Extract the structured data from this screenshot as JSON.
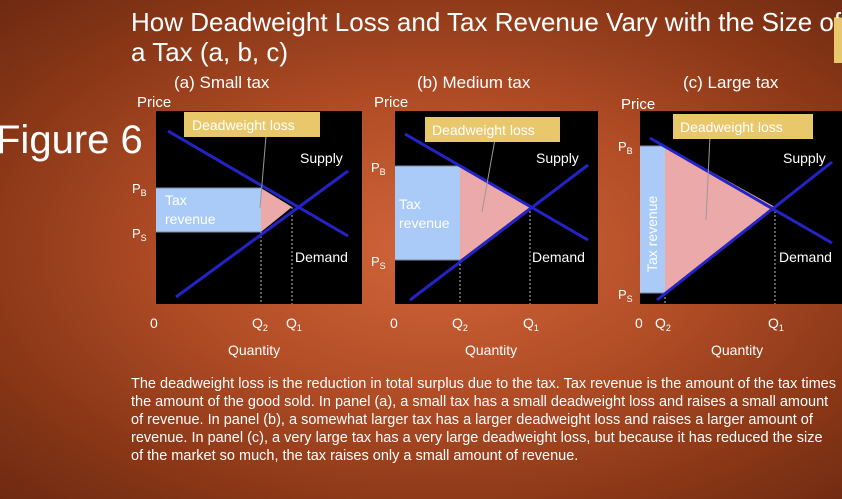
{
  "slide": {
    "title": "How Deadweight Loss and Tax Revenue Vary with the Size of a Tax (a, b, c)",
    "figure_label": "Figure 6",
    "caption": "The deadweight loss is the reduction in total surplus due to the tax. Tax revenue is the amount of the tax times the amount of the good sold. In panel (a), a small tax has a small deadweight loss and raises a small amount of revenue. In panel (b), a somewhat larger tax has a larger deadweight loss and raises a larger amount of revenue. In panel (c), a very large tax has a very large deadweight loss, but because it has reduced the size of the market so much, the tax raises only a small amount of revenue."
  },
  "colors": {
    "plot_bg": "#000000",
    "curve": "#2323c8",
    "tax_revenue": "#aacbf7",
    "deadweight_loss": "#eba9a9",
    "callout_bg": "#e8c86a"
  },
  "panels": [
    {
      "id": "a",
      "title": "(a) Small tax",
      "y_label": "Price",
      "x_label": "Quantity",
      "origin": "0",
      "supply": "Supply",
      "demand": "Demand",
      "pb": "P",
      "pb_sub": "B",
      "ps": "P",
      "ps_sub": "S",
      "q2": "Q",
      "q2_sub": "2",
      "q1": "Q",
      "q1_sub": "1",
      "revenue": "Tax revenue",
      "dwl": "Deadweight loss"
    },
    {
      "id": "b",
      "title": "(b) Medium tax",
      "y_label": "Price",
      "x_label": "Quantity",
      "origin": "0",
      "supply": "Supply",
      "demand": "Demand",
      "pb": "P",
      "pb_sub": "B",
      "ps": "P",
      "ps_sub": "S",
      "q2": "Q",
      "q2_sub": "2",
      "q1": "Q",
      "q1_sub": "1",
      "revenue": "Tax revenue",
      "dwl": "Deadweight loss"
    },
    {
      "id": "c",
      "title": "(c) Large tax",
      "y_label": "Price",
      "x_label": "Quantity",
      "origin": "0",
      "supply": "Supply",
      "demand": "Demand",
      "pb": "P",
      "pb_sub": "B",
      "ps": "P",
      "ps_sub": "S",
      "q2": "Q",
      "q2_sub": "2",
      "q1": "Q",
      "q1_sub": "1",
      "revenue": "Tax revenue",
      "dwl": "Deadweight loss"
    }
  ]
}
